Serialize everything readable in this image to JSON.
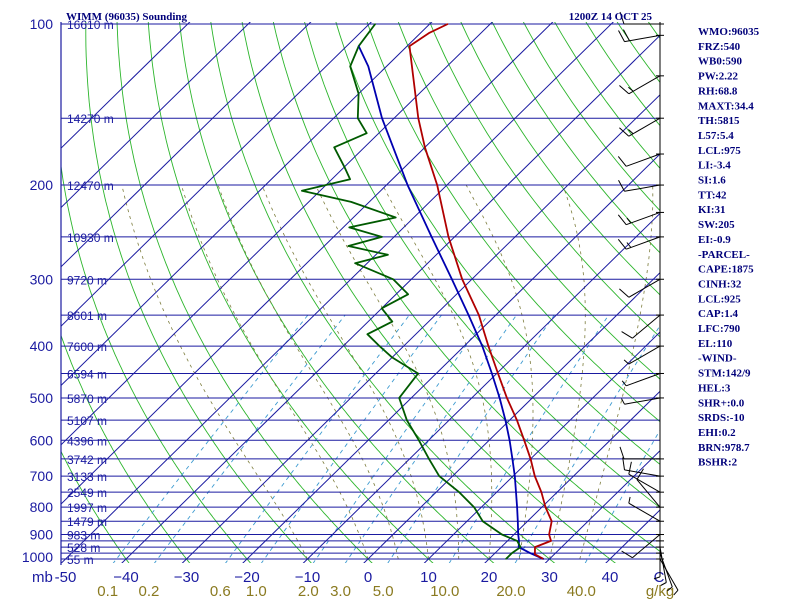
{
  "header": {
    "title": "WIMM (96035) Sounding",
    "time": "1200Z 14 OCT 25"
  },
  "indices": [
    "WMO:96035",
    "FRZ:540",
    "WB0:590",
    "PW:2.22",
    "RH:68.8",
    "MAXT:34.4",
    "TH:5815",
    "L57:5.4",
    "LCL:975",
    "LI:-3.4",
    "SI:1.6",
    "TT:42",
    "KI:31",
    "SW:205",
    "EI:-0.9",
    "-PARCEL-",
    "CAPE:1875",
    "CINH:32",
    "LCL:925",
    "CAP:1.4",
    "LFC:790",
    "EL:110",
    "-WIND-",
    "STM:142/9",
    "HEL:3",
    "SHR+:0.0",
    "SRDS:-10",
    "EHI:0.2",
    "BRN:978.7",
    "BSHR:2"
  ],
  "colors": {
    "isobar": "#1a1aa0",
    "isotherm": "#1a1aa0",
    "dry_adiabat": "#2cb52c",
    "moist_adiabat": "#7c7c3c",
    "mixing_ratio": "#3c9ad0",
    "temperature": "#b00000",
    "dewpoint": "#005a00",
    "parcel": "#0000b0",
    "wind": "#000000"
  },
  "chart_data": {
    "type": "skew-t",
    "title": "WIMM (96035) Sounding",
    "time": "1200Z 14 OCT 25",
    "pressure_unit": "mb",
    "mixing_ratio_unit": "g/kg",
    "pressure_range": [
      1000,
      100
    ],
    "pressure_levels": [
      {
        "p": 100,
        "label": "100"
      },
      {
        "p": 150,
        "label": ""
      },
      {
        "p": 200,
        "label": "200"
      },
      {
        "p": 250,
        "label": ""
      },
      {
        "p": 300,
        "label": "300"
      },
      {
        "p": 350,
        "label": ""
      },
      {
        "p": 400,
        "label": "400"
      },
      {
        "p": 450,
        "label": ""
      },
      {
        "p": 500,
        "label": "500"
      },
      {
        "p": 550,
        "label": ""
      },
      {
        "p": 600,
        "label": "600"
      },
      {
        "p": 650,
        "label": ""
      },
      {
        "p": 700,
        "label": "700"
      },
      {
        "p": 750,
        "label": ""
      },
      {
        "p": 800,
        "label": "800"
      },
      {
        "p": 850,
        "label": ""
      },
      {
        "p": 900,
        "label": "900"
      },
      {
        "p": 925,
        "label": ""
      },
      {
        "p": 950,
        "label": ""
      },
      {
        "p": 975,
        "label": ""
      },
      {
        "p": 1000,
        "label": "1000"
      }
    ],
    "height_labels": [
      {
        "p": 100,
        "label": "16610 m"
      },
      {
        "p": 150,
        "label": "14270 m"
      },
      {
        "p": 200,
        "label": "12470 m"
      },
      {
        "p": 250,
        "label": "10930 m"
      },
      {
        "p": 300,
        "label": "9720 m"
      },
      {
        "p": 350,
        "label": "8601 m"
      },
      {
        "p": 400,
        "label": "7600 m"
      },
      {
        "p": 450,
        "label": "6594 m"
      },
      {
        "p": 500,
        "label": "5870 m"
      },
      {
        "p": 550,
        "label": "5107 m"
      },
      {
        "p": 600,
        "label": "4396 m"
      },
      {
        "p": 650,
        "label": "3742 m"
      },
      {
        "p": 700,
        "label": "3133 m"
      },
      {
        "p": 750,
        "label": "2549 m"
      },
      {
        "p": 800,
        "label": "1997 m"
      },
      {
        "p": 850,
        "label": "1479 m"
      },
      {
        "p": 900,
        "label": "983 m"
      },
      {
        "p": 950,
        "label": "528 m"
      },
      {
        "p": 1000,
        "label": "55 m"
      }
    ],
    "temp_axis": {
      "values": [
        -50,
        -40,
        -30,
        -20,
        -10,
        0,
        10,
        20,
        30,
        40
      ],
      "labels": [
        "-50",
        "−40",
        "−30",
        "−20",
        "−10",
        "0",
        "10",
        "20",
        "30",
        "40"
      ],
      "corner_label": "mb",
      "unit_label": "C"
    },
    "isotherm_range": [
      -120,
      50
    ],
    "mixing_ratio_axis": [
      {
        "w": 0.1,
        "label": "0.1"
      },
      {
        "w": 0.2,
        "label": "0.2"
      },
      {
        "w": 0.6,
        "label": "0.6"
      },
      {
        "w": 1.0,
        "label": "1.0"
      },
      {
        "w": 2.0,
        "label": "2.0"
      },
      {
        "w": 3.0,
        "label": "3.0"
      },
      {
        "w": 5.0,
        "label": "5.0"
      },
      {
        "w": 10.0,
        "label": "10.0"
      },
      {
        "w": 20.0,
        "label": "20.0"
      },
      {
        "w": 40.0,
        "label": "40.0"
      }
    ],
    "dry_adiabats_theta_c": [
      -40,
      -30,
      -20,
      -10,
      0,
      10,
      20,
      30,
      40,
      50,
      60,
      70,
      80,
      90,
      100,
      110,
      120,
      130,
      140,
      150,
      160,
      170,
      180
    ],
    "moist_adiabats_c": [
      -10,
      0,
      5,
      10,
      15,
      20,
      25,
      30,
      35
    ],
    "temperature": [
      {
        "p": 1000,
        "t": 29.0
      },
      {
        "p": 980,
        "t": 26.8
      },
      {
        "p": 950,
        "t": 25.6
      },
      {
        "p": 925,
        "t": 27.2
      },
      {
        "p": 900,
        "t": 25.8
      },
      {
        "p": 850,
        "t": 24.0
      },
      {
        "p": 800,
        "t": 20.6
      },
      {
        "p": 750,
        "t": 17.4
      },
      {
        "p": 700,
        "t": 13.6
      },
      {
        "p": 650,
        "t": 10.0
      },
      {
        "p": 600,
        "t": 5.8
      },
      {
        "p": 550,
        "t": 1.2
      },
      {
        "p": 500,
        "t": -4.2
      },
      {
        "p": 450,
        "t": -9.8
      },
      {
        "p": 400,
        "t": -16.0
      },
      {
        "p": 350,
        "t": -22.8
      },
      {
        "p": 300,
        "t": -31.6
      },
      {
        "p": 250,
        "t": -41.0
      },
      {
        "p": 200,
        "t": -51.6
      },
      {
        "p": 170,
        "t": -60.0
      },
      {
        "p": 150,
        "t": -66.0
      },
      {
        "p": 125,
        "t": -74.0
      },
      {
        "p": 110,
        "t": -79.6
      },
      {
        "p": 104,
        "t": -78.6
      },
      {
        "p": 100,
        "t": -77.0
      }
    ],
    "dewpoint": [
      {
        "p": 1000,
        "t": 22.8
      },
      {
        "p": 975,
        "t": 22.8
      },
      {
        "p": 950,
        "t": 23.2
      },
      {
        "p": 925,
        "t": 21.6
      },
      {
        "p": 900,
        "t": 18.0
      },
      {
        "p": 850,
        "t": 12.6
      },
      {
        "p": 800,
        "t": 8.8
      },
      {
        "p": 750,
        "t": 3.8
      },
      {
        "p": 700,
        "t": -2.2
      },
      {
        "p": 650,
        "t": -6.8
      },
      {
        "p": 600,
        "t": -11.6
      },
      {
        "p": 550,
        "t": -17.0
      },
      {
        "p": 500,
        "t": -22.0
      },
      {
        "p": 450,
        "t": -23.0
      },
      {
        "p": 420,
        "t": -30.0
      },
      {
        "p": 400,
        "t": -34.0
      },
      {
        "p": 380,
        "t": -38.0
      },
      {
        "p": 360,
        "t": -36.0
      },
      {
        "p": 340,
        "t": -40.0
      },
      {
        "p": 320,
        "t": -38.0
      },
      {
        "p": 300,
        "t": -43.0
      },
      {
        "p": 280,
        "t": -52.0
      },
      {
        "p": 270,
        "t": -48.0
      },
      {
        "p": 260,
        "t": -56.0
      },
      {
        "p": 250,
        "t": -52.0
      },
      {
        "p": 240,
        "t": -59.0
      },
      {
        "p": 230,
        "t": -53.0
      },
      {
        "p": 215,
        "t": -63.0
      },
      {
        "p": 205,
        "t": -73.0
      },
      {
        "p": 195,
        "t": -67.0
      },
      {
        "p": 185,
        "t": -70.0
      },
      {
        "p": 170,
        "t": -75.0
      },
      {
        "p": 160,
        "t": -72.0
      },
      {
        "p": 150,
        "t": -76.0
      },
      {
        "p": 135,
        "t": -80.0
      },
      {
        "p": 120,
        "t": -86.0
      },
      {
        "p": 110,
        "t": -88.0
      },
      {
        "p": 100,
        "t": -89.0
      }
    ],
    "parcel": [
      {
        "p": 1000,
        "t": 29.0
      },
      {
        "p": 975,
        "t": 25.8
      },
      {
        "p": 950,
        "t": 22.9
      },
      {
        "p": 925,
        "t": 21.9
      },
      {
        "p": 900,
        "t": 20.7
      },
      {
        "p": 850,
        "t": 18.4
      },
      {
        "p": 800,
        "t": 15.9
      },
      {
        "p": 750,
        "t": 13.2
      },
      {
        "p": 700,
        "t": 10.3
      },
      {
        "p": 650,
        "t": 7.0
      },
      {
        "p": 600,
        "t": 3.4
      },
      {
        "p": 550,
        "t": -0.7
      },
      {
        "p": 500,
        "t": -5.4
      },
      {
        "p": 450,
        "t": -10.8
      },
      {
        "p": 400,
        "t": -17.0
      },
      {
        "p": 350,
        "t": -24.5
      },
      {
        "p": 300,
        "t": -33.3
      },
      {
        "p": 250,
        "t": -43.8
      },
      {
        "p": 200,
        "t": -56.5
      },
      {
        "p": 150,
        "t": -72.0
      },
      {
        "p": 120,
        "t": -83.0
      },
      {
        "p": 110,
        "t": -88.0
      }
    ],
    "wind_barbs": [
      {
        "p": 1000,
        "dir": 150,
        "spd": 5
      },
      {
        "p": 975,
        "dir": 160,
        "spd": 5
      },
      {
        "p": 950,
        "dir": 170,
        "spd": 5
      },
      {
        "p": 925,
        "dir": 180,
        "spd": 5
      },
      {
        "p": 900,
        "dir": 230,
        "spd": 10
      },
      {
        "p": 850,
        "dir": 300,
        "spd": 5
      },
      {
        "p": 800,
        "dir": 320,
        "spd": 10
      },
      {
        "p": 750,
        "dir": 300,
        "spd": 10
      },
      {
        "p": 700,
        "dir": 280,
        "spd": 10
      },
      {
        "p": 650,
        "dir": 270,
        "spd": 10
      },
      {
        "p": 500,
        "dir": 260,
        "spd": 5
      },
      {
        "p": 450,
        "dir": 250,
        "spd": 5
      },
      {
        "p": 400,
        "dir": 240,
        "spd": 5
      },
      {
        "p": 350,
        "dir": 230,
        "spd": 10
      },
      {
        "p": 300,
        "dir": 240,
        "spd": 10
      },
      {
        "p": 250,
        "dir": 250,
        "spd": 15
      },
      {
        "p": 225,
        "dir": 250,
        "spd": 15
      },
      {
        "p": 200,
        "dir": 260,
        "spd": 10
      },
      {
        "p": 175,
        "dir": 250,
        "spd": 10
      },
      {
        "p": 150,
        "dir": 240,
        "spd": 15
      },
      {
        "p": 125,
        "dir": 240,
        "spd": 15
      },
      {
        "p": 105,
        "dir": 260,
        "spd": 20
      },
      {
        "p": 100,
        "dir": 270,
        "spd": 10
      }
    ]
  }
}
